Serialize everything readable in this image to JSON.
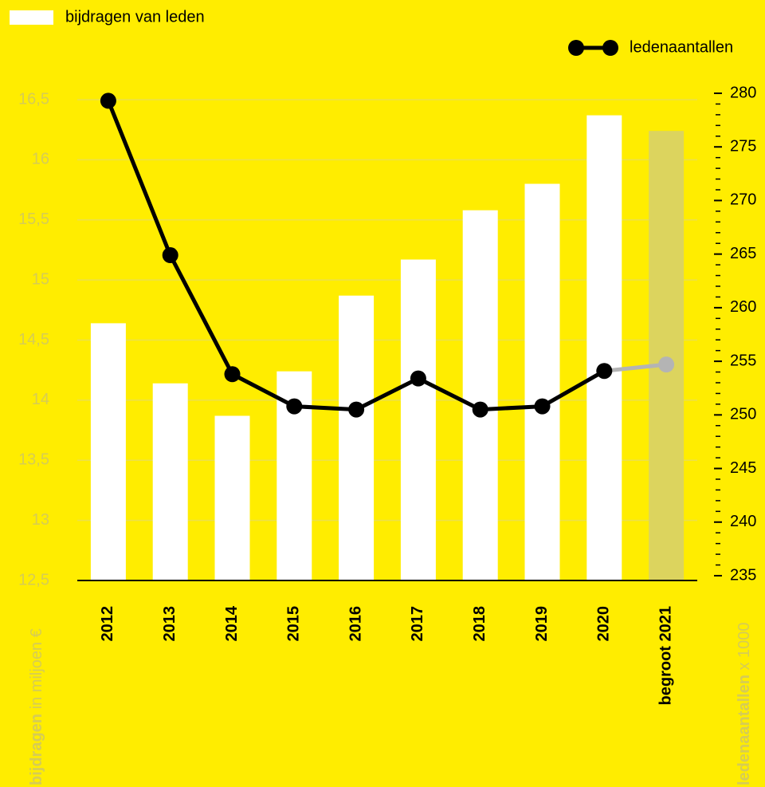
{
  "chart_data": {
    "type": "bar",
    "categories": [
      "2012",
      "2013",
      "2014",
      "2015",
      "2016",
      "2017",
      "2018",
      "2019",
      "2020",
      "begroot 2021"
    ],
    "series": [
      {
        "name": "bijdragen van leden",
        "type": "bar",
        "color": "#ffffff",
        "colors": [
          "#ffffff",
          "#ffffff",
          "#ffffff",
          "#ffffff",
          "#ffffff",
          "#ffffff",
          "#ffffff",
          "#ffffff",
          "#ffffff",
          "#dcd45e"
        ],
        "values": [
          14.64,
          14.14,
          13.87,
          14.24,
          14.87,
          15.17,
          15.58,
          15.8,
          16.37,
          16.24
        ]
      },
      {
        "name": "ledenaantallen",
        "type": "line",
        "axis": "y2",
        "color": "#000000",
        "colors": [
          "#000000",
          "#000000",
          "#000000",
          "#000000",
          "#000000",
          "#000000",
          "#000000",
          "#000000",
          "#000000",
          "#b4b4b4"
        ],
        "values": [
          279.3,
          264.9,
          253.8,
          250.8,
          250.5,
          253.4,
          250.5,
          250.8,
          254.1,
          254.7
        ]
      }
    ],
    "ylim": [
      12.5,
      16.5
    ],
    "yticks": [
      {
        "value": 12.5,
        "label": "12,5"
      },
      13,
      {
        "value": 13.5,
        "label": "13,5"
      },
      14,
      {
        "value": 14.5,
        "label": "14,5"
      },
      15,
      {
        "value": 15.5,
        "label": "15,5"
      },
      16,
      {
        "value": 16.5,
        "label": "16,5"
      }
    ],
    "y2lim": [
      235,
      280
    ],
    "y2ticks": [
      235,
      240,
      245,
      250,
      255,
      260,
      265,
      270,
      275,
      280
    ],
    "y2_minor_tick_step": 1,
    "grid": true,
    "ylabel": {
      "bold": "bijdragen",
      "rest": "in miljoen €"
    },
    "y2label": {
      "bold": "ledenaantallen",
      "rest": "x 1000"
    }
  }
}
